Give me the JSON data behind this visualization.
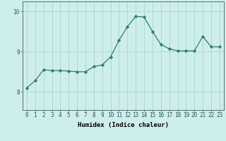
{
  "x": [
    0,
    1,
    2,
    3,
    4,
    5,
    6,
    7,
    8,
    9,
    10,
    11,
    12,
    13,
    14,
    15,
    16,
    17,
    18,
    19,
    20,
    21,
    22,
    23
  ],
  "y": [
    8.1,
    8.28,
    8.55,
    8.53,
    8.53,
    8.52,
    8.5,
    8.5,
    8.63,
    8.67,
    8.87,
    9.28,
    9.62,
    9.88,
    9.86,
    9.5,
    9.18,
    9.07,
    9.02,
    9.02,
    9.02,
    9.38,
    9.12,
    9.12
  ],
  "line_color": "#2e7d6e",
  "marker_color": "#2e7d6e",
  "bg_color": "#ceeeed",
  "grid_color": "#aad4d0",
  "xlabel": "Humidex (Indice chaleur)",
  "xlim": [
    -0.5,
    23.5
  ],
  "ylim": [
    7.55,
    10.25
  ],
  "yticks": [
    8,
    9,
    10
  ],
  "xtick_labels": [
    "0",
    "1",
    "2",
    "3",
    "4",
    "5",
    "6",
    "7",
    "8",
    "9",
    "10",
    "11",
    "12",
    "13",
    "14",
    "15",
    "16",
    "17",
    "18",
    "19",
    "20",
    "21",
    "22",
    "23"
  ],
  "label_fontsize": 6.5,
  "tick_fontsize": 5.5,
  "linewidth": 0.9,
  "markersize": 2.2
}
